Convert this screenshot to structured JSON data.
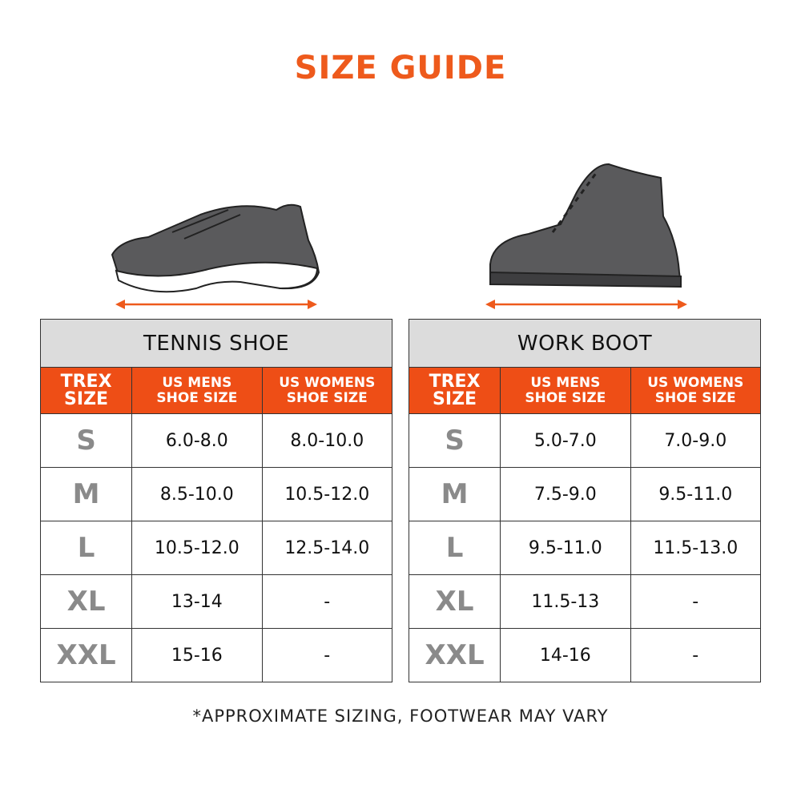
{
  "header": {
    "title": "SIZE GUIDE"
  },
  "tables": [
    {
      "name": "TENNIS SHOE",
      "columns": [
        [
          "TREX",
          "SIZE"
        ],
        [
          "US MENS",
          "SHOE SIZE"
        ],
        [
          "US WOMENS",
          "SHOE SIZE"
        ]
      ],
      "rows": [
        [
          "S",
          "6.0-8.0",
          "8.0-10.0"
        ],
        [
          "M",
          "8.5-10.0",
          "10.5-12.0"
        ],
        [
          "L",
          "10.5-12.0",
          "12.5-14.0"
        ],
        [
          "XL",
          "13-14",
          "-"
        ],
        [
          "XXL",
          "15-16",
          "-"
        ]
      ]
    },
    {
      "name": "WORK BOOT",
      "columns": [
        [
          "TREX",
          "SIZE"
        ],
        [
          "US MENS",
          "SHOE SIZE"
        ],
        [
          "US WOMENS",
          "SHOE SIZE"
        ]
      ],
      "rows": [
        [
          "S",
          "5.0-7.0",
          "7.0-9.0"
        ],
        [
          "M",
          "7.5-9.0",
          "9.5-11.0"
        ],
        [
          "L",
          "9.5-11.0",
          "11.5-13.0"
        ],
        [
          "XL",
          "11.5-13",
          "-"
        ],
        [
          "XXL",
          "14-16",
          "-"
        ]
      ]
    }
  ],
  "footnote": "*APPROXIMATE SIZING, FOOTWEAR MAY VARY"
}
